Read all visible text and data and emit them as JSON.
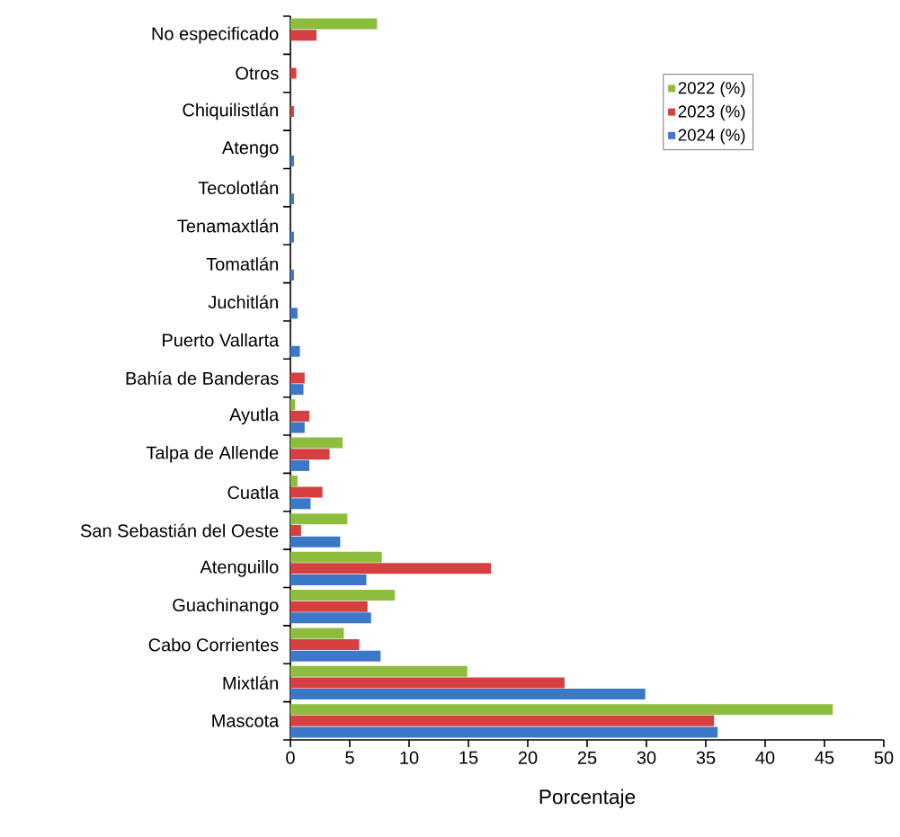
{
  "chart_data": {
    "type": "bar",
    "orientation": "horizontal",
    "xlabel": "Porcentaje",
    "categories": [
      "No especificado",
      "Otros",
      "Chiquilistlán",
      "Atengo",
      "Tecolotlán",
      "Tenamaxtlán",
      "Tomatlán",
      "Juchitlán",
      "Puerto Vallarta",
      "Bahía de Banderas",
      "Ayutla",
      "Talpa de Allende",
      "Cuatla",
      "San Sebastián del Oeste",
      "Atenguillo",
      "Guachinango",
      "Cabo Corrientes",
      "Mixtlán",
      "Mascota"
    ],
    "series": [
      {
        "name": "2022 (%)",
        "color": "#8cbd3f",
        "values": [
          7.3,
          0,
          0,
          0,
          0,
          0,
          0,
          0,
          0,
          0,
          0.4,
          4.4,
          0.6,
          4.8,
          7.7,
          8.8,
          4.5,
          14.9,
          45.7
        ]
      },
      {
        "name": "2023 (%)",
        "color": "#d64040",
        "values": [
          2.2,
          0.5,
          0.3,
          0,
          0,
          0,
          0,
          0,
          0,
          1.2,
          1.6,
          3.3,
          2.7,
          0.9,
          16.9,
          6.5,
          5.8,
          23.1,
          35.7
        ]
      },
      {
        "name": "2024 (%)",
        "color": "#3c78c8",
        "values": [
          0,
          0,
          0,
          0.3,
          0.3,
          0.3,
          0.3,
          0.6,
          0.8,
          1.1,
          1.2,
          1.6,
          1.7,
          4.2,
          6.4,
          6.8,
          7.6,
          29.9,
          36.0
        ]
      }
    ],
    "xlim": [
      0,
      50
    ],
    "xticks": [
      0,
      5,
      10,
      15,
      20,
      25,
      30,
      35,
      40,
      45,
      50
    ],
    "grid": false,
    "legend": "top right"
  }
}
